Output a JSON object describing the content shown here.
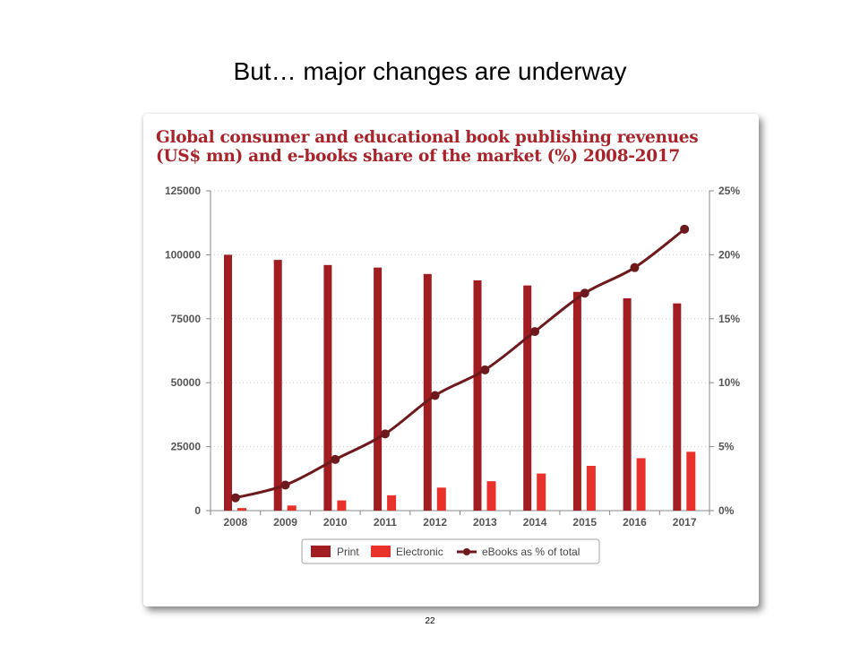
{
  "slide": {
    "title": "But… major changes are underway",
    "page_number": "22"
  },
  "chart_data": {
    "type": "bar",
    "title": "Global consumer and educational book publishing revenues (US$ mn) and e-books share of the market (%) 2008-2017",
    "categories": [
      "2008",
      "2009",
      "2010",
      "2011",
      "2012",
      "2013",
      "2014",
      "2015",
      "2016",
      "2017"
    ],
    "series": [
      {
        "name": "Print",
        "type": "bar",
        "axis": "left",
        "color": "#a11d21",
        "values": [
          100000,
          98000,
          96000,
          95000,
          92500,
          90000,
          88000,
          85500,
          83000,
          81000
        ]
      },
      {
        "name": "Electronic",
        "type": "bar",
        "axis": "left",
        "color": "#e8312a",
        "values": [
          1000,
          2000,
          4000,
          6000,
          9000,
          11500,
          14500,
          17500,
          20500,
          23000
        ]
      },
      {
        "name": "eBooks as % of total",
        "type": "line",
        "axis": "right",
        "color": "#6e1a1d",
        "values": [
          1,
          2,
          4,
          6,
          9,
          11,
          14,
          17,
          19,
          22
        ]
      }
    ],
    "y_left": {
      "min": 0,
      "max": 125000,
      "ticks": [
        0,
        25000,
        50000,
        75000,
        100000,
        125000
      ],
      "tick_labels": [
        "0",
        "25000",
        "50000",
        "75000",
        "100000",
        "125000"
      ]
    },
    "y_right": {
      "min": 0,
      "max": 25,
      "ticks": [
        0,
        5,
        10,
        15,
        20,
        25
      ],
      "tick_labels": [
        "0%",
        "5%",
        "10%",
        "15%",
        "20%",
        "25%"
      ]
    },
    "grid": true,
    "legend_position": "bottom-center",
    "legend": [
      {
        "label": "Print",
        "color": "#a11d21",
        "marker": "box"
      },
      {
        "label": "Electronic",
        "color": "#e8312a",
        "marker": "box"
      },
      {
        "label": "eBooks as % of total",
        "color": "#6e1a1d",
        "marker": "line-dot"
      }
    ]
  }
}
